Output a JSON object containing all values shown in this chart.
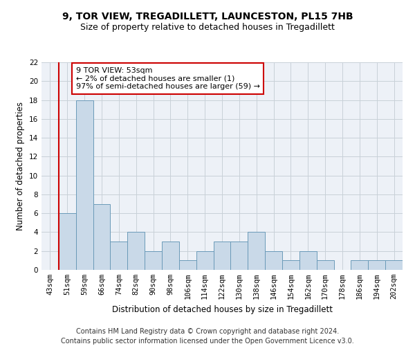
{
  "title": "9, TOR VIEW, TREGADILLETT, LAUNCESTON, PL15 7HB",
  "subtitle": "Size of property relative to detached houses in Tregadillett",
  "xlabel": "Distribution of detached houses by size in Tregadillett",
  "ylabel": "Number of detached properties",
  "categories": [
    "43sqm",
    "51sqm",
    "59sqm",
    "66sqm",
    "74sqm",
    "82sqm",
    "90sqm",
    "98sqm",
    "106sqm",
    "114sqm",
    "122sqm",
    "130sqm",
    "138sqm",
    "146sqm",
    "154sqm",
    "162sqm",
    "170sqm",
    "178sqm",
    "186sqm",
    "194sqm",
    "202sqm"
  ],
  "values": [
    0,
    6,
    18,
    7,
    3,
    4,
    2,
    3,
    1,
    2,
    3,
    3,
    4,
    2,
    1,
    2,
    1,
    0,
    1,
    1,
    1
  ],
  "bar_color": "#c9d9e8",
  "bar_edge_color": "#6a9ab8",
  "red_line_index": 1,
  "annotation_text": "9 TOR VIEW: 53sqm\n← 2% of detached houses are smaller (1)\n97% of semi-detached houses are larger (59) →",
  "annotation_box_color": "#ffffff",
  "annotation_box_edge": "#cc0000",
  "ylim": [
    0,
    22
  ],
  "yticks": [
    0,
    2,
    4,
    6,
    8,
    10,
    12,
    14,
    16,
    18,
    20,
    22
  ],
  "footer_line1": "Contains HM Land Registry data © Crown copyright and database right 2024.",
  "footer_line2": "Contains public sector information licensed under the Open Government Licence v3.0.",
  "title_fontsize": 10,
  "subtitle_fontsize": 9,
  "axis_label_fontsize": 8.5,
  "tick_fontsize": 7.5,
  "annotation_fontsize": 8,
  "footer_fontsize": 7,
  "grid_color": "#c8d0d8",
  "background_color": "#edf1f7"
}
